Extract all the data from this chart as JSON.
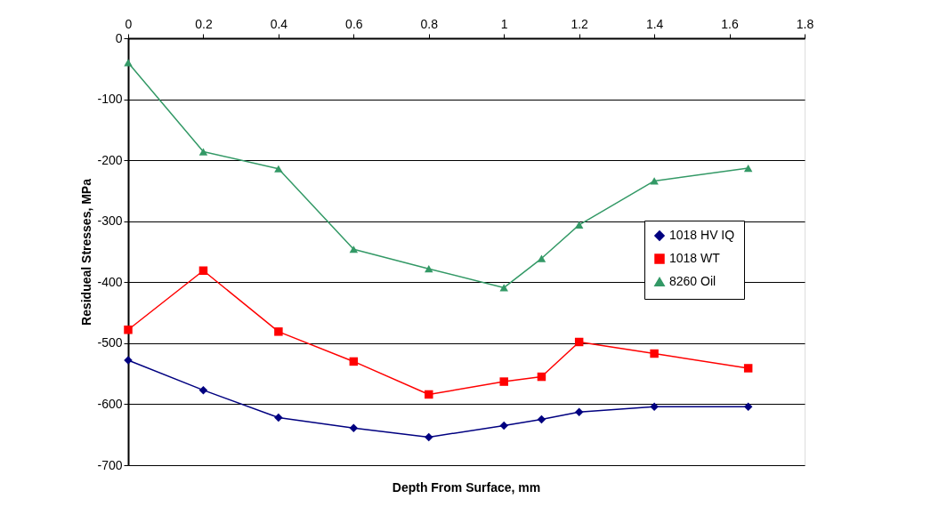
{
  "chart_data": {
    "type": "line",
    "xlabel": "Depth From Surface, mm",
    "ylabel": "Residueal Stresses, MPa",
    "x": [
      0,
      0.2,
      0.4,
      0.6,
      0.8,
      1,
      1.1,
      1.2,
      1.4,
      1.65
    ],
    "series": [
      {
        "name": "1018 HV IQ",
        "color": "#000080",
        "marker": "diamond",
        "values": [
          -528,
          -577,
          -622,
          -639,
          -654,
          -635,
          -625,
          -613,
          -604,
          -604
        ]
      },
      {
        "name": "1018 WT",
        "color": "#ff0000",
        "marker": "square",
        "values": [
          -478,
          -381,
          -481,
          -530,
          -584,
          -563,
          -555,
          -498,
          -517,
          -541
        ]
      },
      {
        "name": "8260 Oil",
        "color": "#339966",
        "marker": "triangle",
        "values": [
          -40,
          -186,
          -214,
          -346,
          -378,
          -409,
          -361,
          -306,
          -234,
          -213
        ]
      }
    ],
    "xlim": [
      0,
      1.8
    ],
    "xticks": [
      0,
      0.2,
      0.4,
      0.6,
      0.8,
      1,
      1.2,
      1.4,
      1.6,
      1.8
    ],
    "ylim": [
      -700,
      0
    ],
    "yticks": [
      -700,
      -600,
      -500,
      -400,
      -300,
      -200,
      -100,
      0
    ],
    "grid": "y",
    "legend": "right",
    "line_style": "solid"
  }
}
